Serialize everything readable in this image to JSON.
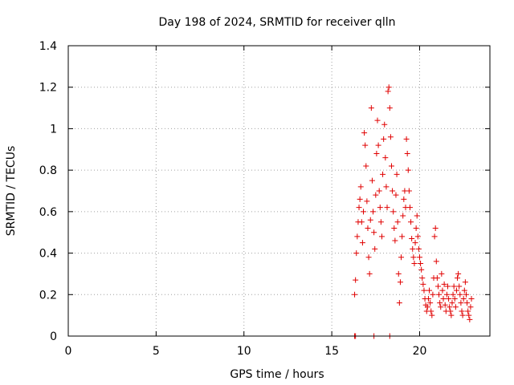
{
  "chart_data": {
    "type": "scatter",
    "title": "Day 198 of 2024, SRMTID for receiver qlln",
    "xlabel": "GPS time / hours",
    "ylabel": "SRMTID / TECUs",
    "xlim": [
      0,
      24
    ],
    "ylim": [
      0,
      1.4
    ],
    "xticks": [
      0,
      5,
      10,
      15,
      20
    ],
    "yticks": [
      0,
      0.2,
      0.4,
      0.6,
      0.8,
      1,
      1.2,
      1.4
    ],
    "xtick_labels": [
      "0",
      "5",
      "10",
      "15",
      "20"
    ],
    "ytick_labels": [
      "0",
      "0.2",
      "0.4",
      "0.6",
      "0.8",
      "1",
      "1.2",
      "1.4"
    ],
    "grid": true,
    "marker": "+",
    "color": "#e00000",
    "series": [
      {
        "name": "SRMTID",
        "points": [
          [
            16.3,
            0
          ],
          [
            16.35,
            0
          ],
          [
            17.4,
            0
          ],
          [
            18.3,
            0
          ],
          [
            16.3,
            0.2
          ],
          [
            16.35,
            0.27
          ],
          [
            16.4,
            0.4
          ],
          [
            16.45,
            0.48
          ],
          [
            16.5,
            0.55
          ],
          [
            16.55,
            0.62
          ],
          [
            16.6,
            0.66
          ],
          [
            16.65,
            0.72
          ],
          [
            16.7,
            0.55
          ],
          [
            16.75,
            0.45
          ],
          [
            16.8,
            0.6
          ],
          [
            16.85,
            0.98
          ],
          [
            16.9,
            0.92
          ],
          [
            16.95,
            0.82
          ],
          [
            17.0,
            0.65
          ],
          [
            17.05,
            0.52
          ],
          [
            17.1,
            0.38
          ],
          [
            17.15,
            0.3
          ],
          [
            17.2,
            0.56
          ],
          [
            17.25,
            1.1
          ],
          [
            17.3,
            0.75
          ],
          [
            17.35,
            0.6
          ],
          [
            17.4,
            0.5
          ],
          [
            17.45,
            0.42
          ],
          [
            17.5,
            0.68
          ],
          [
            17.55,
            0.88
          ],
          [
            17.6,
            1.04
          ],
          [
            17.65,
            0.92
          ],
          [
            17.7,
            0.7
          ],
          [
            17.75,
            0.62
          ],
          [
            17.8,
            0.55
          ],
          [
            17.85,
            0.48
          ],
          [
            17.9,
            0.78
          ],
          [
            17.95,
            0.95
          ],
          [
            18.0,
            1.02
          ],
          [
            18.05,
            0.86
          ],
          [
            18.1,
            0.72
          ],
          [
            18.15,
            0.62
          ],
          [
            18.2,
            1.18
          ],
          [
            18.25,
            1.2
          ],
          [
            18.3,
            1.1
          ],
          [
            18.35,
            0.96
          ],
          [
            18.4,
            0.82
          ],
          [
            18.45,
            0.7
          ],
          [
            18.5,
            0.6
          ],
          [
            18.55,
            0.52
          ],
          [
            18.6,
            0.46
          ],
          [
            18.65,
            0.68
          ],
          [
            18.7,
            0.78
          ],
          [
            18.75,
            0.55
          ],
          [
            18.8,
            0.3
          ],
          [
            18.85,
            0.16
          ],
          [
            18.9,
            0.26
          ],
          [
            18.95,
            0.38
          ],
          [
            19.0,
            0.48
          ],
          [
            19.05,
            0.58
          ],
          [
            19.1,
            0.66
          ],
          [
            19.15,
            0.7
          ],
          [
            19.2,
            0.62
          ],
          [
            19.25,
            0.95
          ],
          [
            19.3,
            0.88
          ],
          [
            19.35,
            0.8
          ],
          [
            19.4,
            0.7
          ],
          [
            19.45,
            0.62
          ],
          [
            19.5,
            0.55
          ],
          [
            19.55,
            0.47
          ],
          [
            19.6,
            0.42
          ],
          [
            19.65,
            0.38
          ],
          [
            19.7,
            0.35
          ],
          [
            19.75,
            0.45
          ],
          [
            19.8,
            0.52
          ],
          [
            19.85,
            0.58
          ],
          [
            19.9,
            0.48
          ],
          [
            19.95,
            0.42
          ],
          [
            20.0,
            0.38
          ],
          [
            20.05,
            0.35
          ],
          [
            20.1,
            0.32
          ],
          [
            20.15,
            0.28
          ],
          [
            20.2,
            0.25
          ],
          [
            20.25,
            0.22
          ],
          [
            20.3,
            0.18
          ],
          [
            20.35,
            0.15
          ],
          [
            20.4,
            0.12
          ],
          [
            20.45,
            0.14
          ],
          [
            20.5,
            0.18
          ],
          [
            20.55,
            0.22
          ],
          [
            20.6,
            0.16
          ],
          [
            20.65,
            0.12
          ],
          [
            20.7,
            0.1
          ],
          [
            20.75,
            0.2
          ],
          [
            20.8,
            0.28
          ],
          [
            20.85,
            0.48
          ],
          [
            20.9,
            0.52
          ],
          [
            20.95,
            0.36
          ],
          [
            21.0,
            0.28
          ],
          [
            21.05,
            0.24
          ],
          [
            21.1,
            0.2
          ],
          [
            21.15,
            0.16
          ],
          [
            21.2,
            0.14
          ],
          [
            21.25,
            0.3
          ],
          [
            21.3,
            0.22
          ],
          [
            21.35,
            0.18
          ],
          [
            21.4,
            0.25
          ],
          [
            21.45,
            0.15
          ],
          [
            21.5,
            0.12
          ],
          [
            21.55,
            0.2
          ],
          [
            21.6,
            0.24
          ],
          [
            21.65,
            0.18
          ],
          [
            21.7,
            0.14
          ],
          [
            21.75,
            0.12
          ],
          [
            21.8,
            0.1
          ],
          [
            21.85,
            0.16
          ],
          [
            21.9,
            0.2
          ],
          [
            21.95,
            0.24
          ],
          [
            22.0,
            0.18
          ],
          [
            22.05,
            0.14
          ],
          [
            22.1,
            0.22
          ],
          [
            22.15,
            0.28
          ],
          [
            22.2,
            0.3
          ],
          [
            22.25,
            0.24
          ],
          [
            22.3,
            0.2
          ],
          [
            22.35,
            0.16
          ],
          [
            22.4,
            0.12
          ],
          [
            22.45,
            0.1
          ],
          [
            22.5,
            0.18
          ],
          [
            22.55,
            0.22
          ],
          [
            22.6,
            0.26
          ],
          [
            22.65,
            0.2
          ],
          [
            22.7,
            0.16
          ],
          [
            22.75,
            0.12
          ],
          [
            22.8,
            0.1
          ],
          [
            22.85,
            0.08
          ],
          [
            22.9,
            0.14
          ],
          [
            22.95,
            0.18
          ]
        ]
      }
    ]
  }
}
